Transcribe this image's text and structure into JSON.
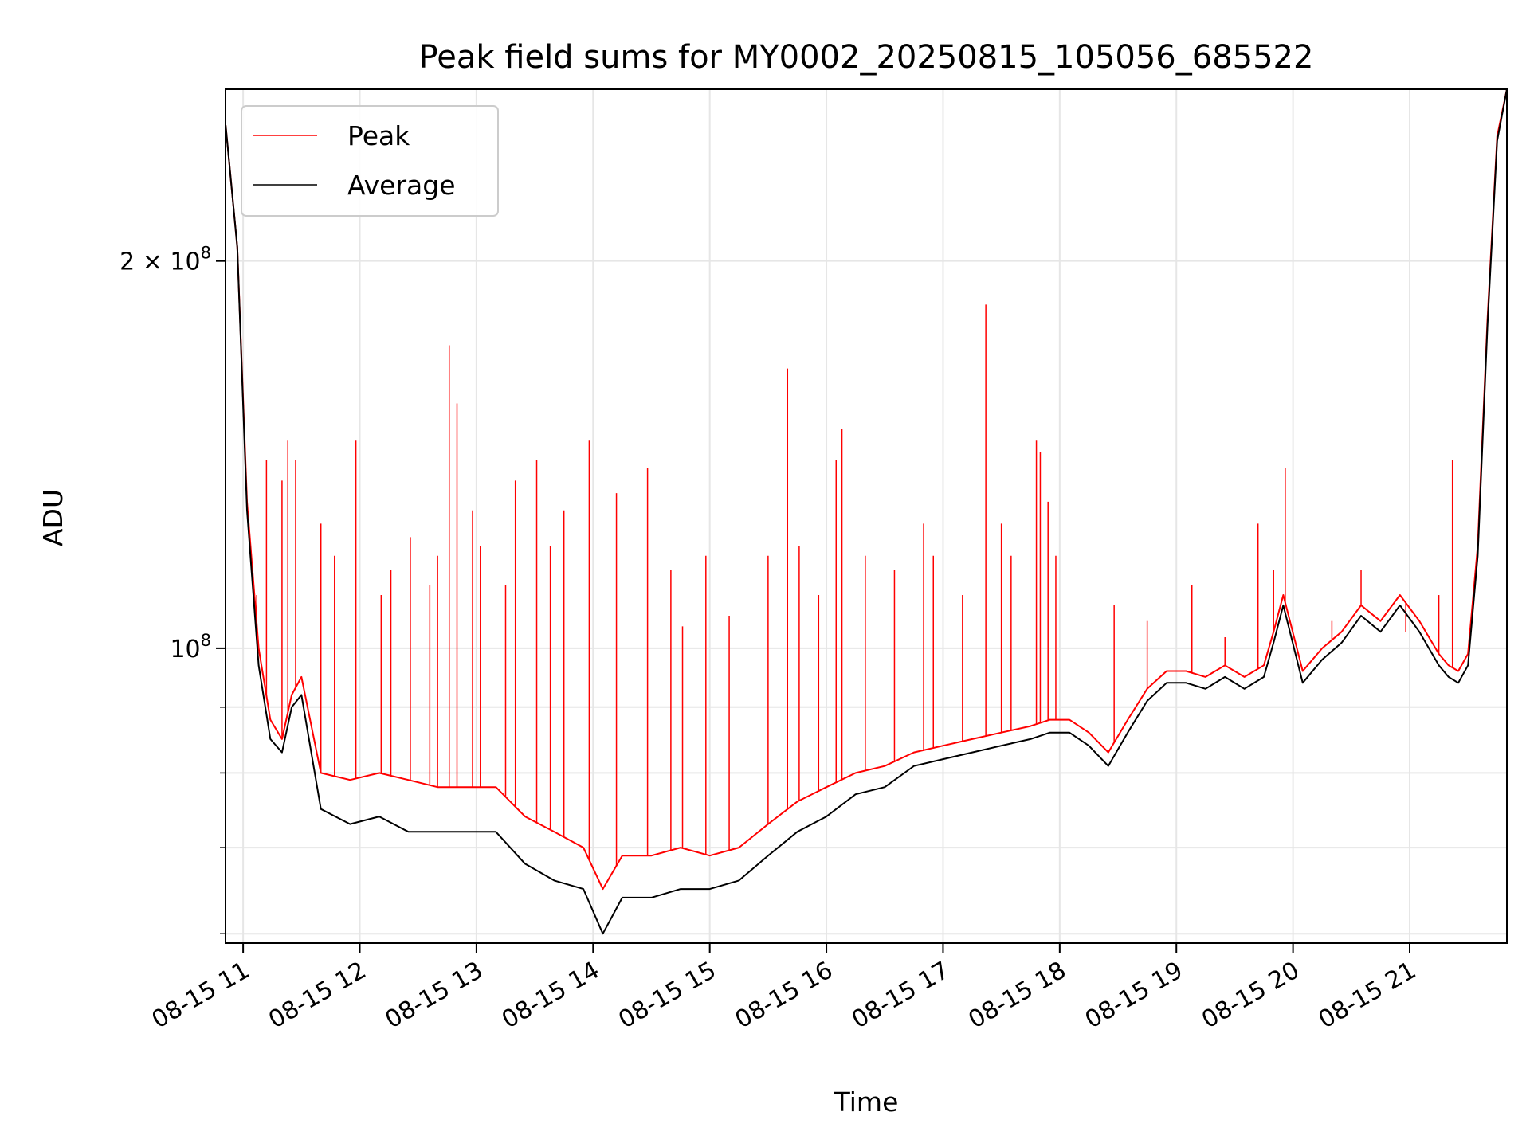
{
  "chart_data": {
    "type": "line",
    "title": "Peak field sums for MY0002_20250815_105056_685522",
    "xlabel": "Time",
    "ylabel": "ADU",
    "yscale": "log",
    "ylim": [
      59000000,
      272000000
    ],
    "xlim": [
      "2025-08-15T10:50:56",
      "2025-08-15T21:50:00"
    ],
    "grid": true,
    "legend_loc": "upper left",
    "x_ticks": [
      {
        "t": "2025-08-15T11:00",
        "label": "08-15 11"
      },
      {
        "t": "2025-08-15T12:00",
        "label": "08-15 12"
      },
      {
        "t": "2025-08-15T13:00",
        "label": "08-15 13"
      },
      {
        "t": "2025-08-15T14:00",
        "label": "08-15 14"
      },
      {
        "t": "2025-08-15T15:00",
        "label": "08-15 15"
      },
      {
        "t": "2025-08-15T16:00",
        "label": "08-15 16"
      },
      {
        "t": "2025-08-15T17:00",
        "label": "08-15 17"
      },
      {
        "t": "2025-08-15T18:00",
        "label": "08-15 18"
      },
      {
        "t": "2025-08-15T19:00",
        "label": "08-15 19"
      },
      {
        "t": "2025-08-15T20:00",
        "label": "08-15 20"
      },
      {
        "t": "2025-08-15T21:00",
        "label": "08-15 21"
      }
    ],
    "y_major_ticks": [
      {
        "value": 100000000,
        "base": "10",
        "exp": "8"
      },
      {
        "value": 200000000,
        "base": "2 × 10",
        "exp": "8"
      }
    ],
    "y_minor_ticks": [
      60000000,
      70000000,
      80000000,
      90000000
    ],
    "series": [
      {
        "name": "Peak",
        "color": "#ff0000",
        "x": [
          "2025-08-15T10:51",
          "2025-08-15T10:57",
          "2025-08-15T11:02",
          "2025-08-15T11:08",
          "2025-08-15T11:14",
          "2025-08-15T11:20",
          "2025-08-15T11:25",
          "2025-08-15T11:30",
          "2025-08-15T11:40",
          "2025-08-15T11:55",
          "2025-08-15T12:10",
          "2025-08-15T12:25",
          "2025-08-15T12:40",
          "2025-08-15T12:55",
          "2025-08-15T13:10",
          "2025-08-15T13:25",
          "2025-08-15T13:40",
          "2025-08-15T13:55",
          "2025-08-15T14:05",
          "2025-08-15T14:15",
          "2025-08-15T14:30",
          "2025-08-15T14:45",
          "2025-08-15T15:00",
          "2025-08-15T15:15",
          "2025-08-15T15:30",
          "2025-08-15T15:45",
          "2025-08-15T16:00",
          "2025-08-15T16:15",
          "2025-08-15T16:30",
          "2025-08-15T16:45",
          "2025-08-15T17:00",
          "2025-08-15T17:15",
          "2025-08-15T17:30",
          "2025-08-15T17:45",
          "2025-08-15T17:55",
          "2025-08-15T18:05",
          "2025-08-15T18:15",
          "2025-08-15T18:25",
          "2025-08-15T18:35",
          "2025-08-15T18:45",
          "2025-08-15T18:55",
          "2025-08-15T19:05",
          "2025-08-15T19:15",
          "2025-08-15T19:25",
          "2025-08-15T19:35",
          "2025-08-15T19:45",
          "2025-08-15T19:50",
          "2025-08-15T19:55",
          "2025-08-15T20:05",
          "2025-08-15T20:15",
          "2025-08-15T20:25",
          "2025-08-15T20:35",
          "2025-08-15T20:45",
          "2025-08-15T20:55",
          "2025-08-15T21:05",
          "2025-08-15T21:15",
          "2025-08-15T21:20",
          "2025-08-15T21:25",
          "2025-08-15T21:30",
          "2025-08-15T21:35",
          "2025-08-15T21:40",
          "2025-08-15T21:45",
          "2025-08-15T21:50"
        ],
        "values": [
          255000000,
          205000000,
          130000000,
          100000000,
          88000000,
          85000000,
          92000000,
          95000000,
          80000000,
          79000000,
          80000000,
          79000000,
          78000000,
          78000000,
          78000000,
          74000000,
          72000000,
          70000000,
          65000000,
          69000000,
          69000000,
          70000000,
          69000000,
          70000000,
          73000000,
          76000000,
          78000000,
          80000000,
          81000000,
          83000000,
          84000000,
          85000000,
          86000000,
          87000000,
          88000000,
          88000000,
          86000000,
          83000000,
          88000000,
          93000000,
          96000000,
          96000000,
          95000000,
          97000000,
          95000000,
          97000000,
          103000000,
          110000000,
          96000000,
          100000000,
          103000000,
          108000000,
          105000000,
          110000000,
          105000000,
          99000000,
          97000000,
          96000000,
          99000000,
          120000000,
          180000000,
          250000000,
          272000000
        ],
        "spikes": [
          [
            "2025-08-15T11:07",
            110000000
          ],
          [
            "2025-08-15T11:12",
            140000000
          ],
          [
            "2025-08-15T11:20",
            135000000
          ],
          [
            "2025-08-15T11:23",
            145000000
          ],
          [
            "2025-08-15T11:27",
            140000000
          ],
          [
            "2025-08-15T11:40",
            125000000
          ],
          [
            "2025-08-15T11:47",
            118000000
          ],
          [
            "2025-08-15T11:58",
            145000000
          ],
          [
            "2025-08-15T12:11",
            110000000
          ],
          [
            "2025-08-15T12:16",
            115000000
          ],
          [
            "2025-08-15T12:26",
            122000000
          ],
          [
            "2025-08-15T12:36",
            112000000
          ],
          [
            "2025-08-15T12:40",
            118000000
          ],
          [
            "2025-08-15T12:46",
            172000000
          ],
          [
            "2025-08-15T12:50",
            155000000
          ],
          [
            "2025-08-15T12:58",
            128000000
          ],
          [
            "2025-08-15T13:02",
            120000000
          ],
          [
            "2025-08-15T13:15",
            112000000
          ],
          [
            "2025-08-15T13:20",
            135000000
          ],
          [
            "2025-08-15T13:31",
            140000000
          ],
          [
            "2025-08-15T13:38",
            120000000
          ],
          [
            "2025-08-15T13:45",
            128000000
          ],
          [
            "2025-08-15T13:58",
            145000000
          ],
          [
            "2025-08-15T14:12",
            132000000
          ],
          [
            "2025-08-15T14:28",
            138000000
          ],
          [
            "2025-08-15T14:40",
            115000000
          ],
          [
            "2025-08-15T14:46",
            104000000
          ],
          [
            "2025-08-15T14:58",
            118000000
          ],
          [
            "2025-08-15T15:10",
            106000000
          ],
          [
            "2025-08-15T15:30",
            118000000
          ],
          [
            "2025-08-15T15:40",
            165000000
          ],
          [
            "2025-08-15T15:46",
            120000000
          ],
          [
            "2025-08-15T15:56",
            110000000
          ],
          [
            "2025-08-15T16:05",
            140000000
          ],
          [
            "2025-08-15T16:08",
            148000000
          ],
          [
            "2025-08-15T16:20",
            118000000
          ],
          [
            "2025-08-15T16:35",
            115000000
          ],
          [
            "2025-08-15T16:50",
            125000000
          ],
          [
            "2025-08-15T16:55",
            118000000
          ],
          [
            "2025-08-15T17:10",
            110000000
          ],
          [
            "2025-08-15T17:22",
            185000000
          ],
          [
            "2025-08-15T17:30",
            125000000
          ],
          [
            "2025-08-15T17:35",
            118000000
          ],
          [
            "2025-08-15T17:48",
            145000000
          ],
          [
            "2025-08-15T17:50",
            142000000
          ],
          [
            "2025-08-15T17:54",
            130000000
          ],
          [
            "2025-08-15T17:58",
            118000000
          ],
          [
            "2025-08-15T18:28",
            108000000
          ],
          [
            "2025-08-15T18:45",
            105000000
          ],
          [
            "2025-08-15T19:08",
            112000000
          ],
          [
            "2025-08-15T19:25",
            102000000
          ],
          [
            "2025-08-15T19:42",
            125000000
          ],
          [
            "2025-08-15T19:50",
            115000000
          ],
          [
            "2025-08-15T19:56",
            138000000
          ],
          [
            "2025-08-15T20:20",
            105000000
          ],
          [
            "2025-08-15T20:35",
            115000000
          ],
          [
            "2025-08-15T20:58",
            103000000
          ],
          [
            "2025-08-15T21:15",
            110000000
          ],
          [
            "2025-08-15T21:22",
            140000000
          ]
        ]
      },
      {
        "name": "Average",
        "color": "#000000",
        "x": [
          "2025-08-15T10:51",
          "2025-08-15T10:57",
          "2025-08-15T11:02",
          "2025-08-15T11:08",
          "2025-08-15T11:14",
          "2025-08-15T11:20",
          "2025-08-15T11:25",
          "2025-08-15T11:30",
          "2025-08-15T11:40",
          "2025-08-15T11:55",
          "2025-08-15T12:10",
          "2025-08-15T12:25",
          "2025-08-15T12:40",
          "2025-08-15T12:55",
          "2025-08-15T13:10",
          "2025-08-15T13:25",
          "2025-08-15T13:40",
          "2025-08-15T13:55",
          "2025-08-15T14:05",
          "2025-08-15T14:15",
          "2025-08-15T14:30",
          "2025-08-15T14:45",
          "2025-08-15T15:00",
          "2025-08-15T15:15",
          "2025-08-15T15:30",
          "2025-08-15T15:45",
          "2025-08-15T16:00",
          "2025-08-15T16:15",
          "2025-08-15T16:30",
          "2025-08-15T16:45",
          "2025-08-15T17:00",
          "2025-08-15T17:15",
          "2025-08-15T17:30",
          "2025-08-15T17:45",
          "2025-08-15T17:55",
          "2025-08-15T18:05",
          "2025-08-15T18:15",
          "2025-08-15T18:25",
          "2025-08-15T18:35",
          "2025-08-15T18:45",
          "2025-08-15T18:55",
          "2025-08-15T19:05",
          "2025-08-15T19:15",
          "2025-08-15T19:25",
          "2025-08-15T19:35",
          "2025-08-15T19:45",
          "2025-08-15T19:50",
          "2025-08-15T19:55",
          "2025-08-15T20:05",
          "2025-08-15T20:15",
          "2025-08-15T20:25",
          "2025-08-15T20:35",
          "2025-08-15T20:45",
          "2025-08-15T20:55",
          "2025-08-15T21:05",
          "2025-08-15T21:15",
          "2025-08-15T21:20",
          "2025-08-15T21:25",
          "2025-08-15T21:30",
          "2025-08-15T21:35",
          "2025-08-15T21:40",
          "2025-08-15T21:45",
          "2025-08-15T21:50"
        ],
        "values": [
          255000000,
          205000000,
          128000000,
          97000000,
          85000000,
          83000000,
          90000000,
          92000000,
          75000000,
          73000000,
          74000000,
          72000000,
          72000000,
          72000000,
          72000000,
          68000000,
          66000000,
          65000000,
          60000000,
          64000000,
          64000000,
          65000000,
          65000000,
          66000000,
          69000000,
          72000000,
          74000000,
          77000000,
          78000000,
          81000000,
          82000000,
          83000000,
          84000000,
          85000000,
          86000000,
          86000000,
          84000000,
          81000000,
          86000000,
          91000000,
          94000000,
          94000000,
          93000000,
          95000000,
          93000000,
          95000000,
          101000000,
          108000000,
          94000000,
          98000000,
          101000000,
          106000000,
          103000000,
          108000000,
          103000000,
          97000000,
          95000000,
          94000000,
          97000000,
          118000000,
          178000000,
          248000000,
          272000000
        ]
      }
    ]
  }
}
